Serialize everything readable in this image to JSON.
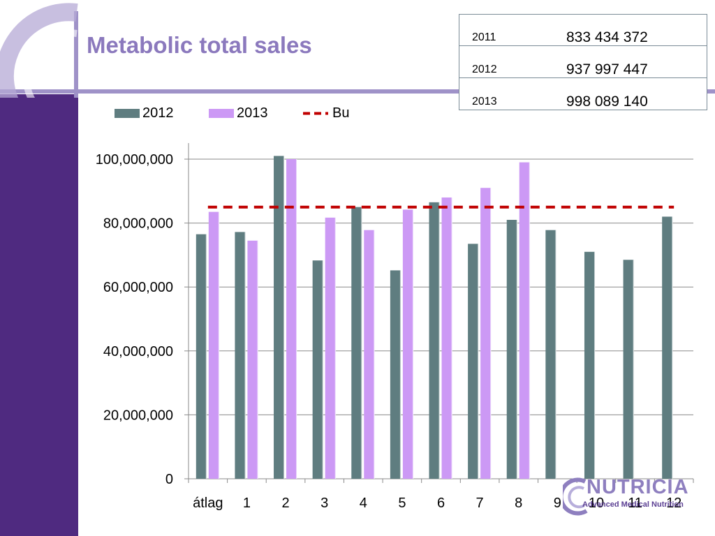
{
  "slide": {
    "title": "Metabolic total sales",
    "colors": {
      "band": "#4f2a80",
      "deco": "#9f92c8",
      "title": "#8b79bd"
    }
  },
  "totals_table": [
    {
      "year": "2011",
      "value": "833 434 372"
    },
    {
      "year": "2012",
      "value": "937 997 447"
    },
    {
      "year": "2013",
      "value": "998 089 140"
    }
  ],
  "logo": {
    "name": "NUTRICIA",
    "tagline": "Advanced Medical Nutrition",
    "icon": "nutricia-swirl-logo"
  },
  "chart_data": {
    "type": "bar",
    "categories": [
      "átlag",
      "1",
      "2",
      "3",
      "4",
      "5",
      "6",
      "7",
      "8",
      "9",
      "10",
      "11",
      "12"
    ],
    "series": [
      {
        "name": "2012",
        "type": "bar",
        "color": "#5f7d80",
        "values": [
          76500000,
          77200000,
          101000000,
          68300000,
          85000000,
          65200000,
          86500000,
          73500000,
          81000000,
          77800000,
          71000000,
          68500000,
          82000000
        ]
      },
      {
        "name": "2013",
        "type": "bar",
        "color": "#cc99f5",
        "values": [
          83500000,
          74500000,
          100000000,
          81700000,
          77800000,
          84200000,
          88000000,
          91000000,
          99000000,
          null,
          null,
          null,
          null
        ]
      },
      {
        "name": "Bu",
        "type": "line",
        "style": "dashed",
        "color": "#c00000",
        "values": [
          85000000,
          85000000,
          85000000,
          85000000,
          85000000,
          85000000,
          85000000,
          85000000,
          85000000,
          85000000,
          85000000,
          85000000,
          85000000
        ]
      }
    ],
    "ylim": [
      0,
      100000000
    ],
    "yticks": [
      "0",
      "20,000,000",
      "40,000,000",
      "60,000,000",
      "80,000,000",
      "100,000,000"
    ],
    "ytick_values": [
      0,
      20000000,
      40000000,
      60000000,
      80000000,
      100000000
    ],
    "grid": true,
    "legend_position": "top-left",
    "title": "",
    "xlabel": "",
    "ylabel": ""
  }
}
